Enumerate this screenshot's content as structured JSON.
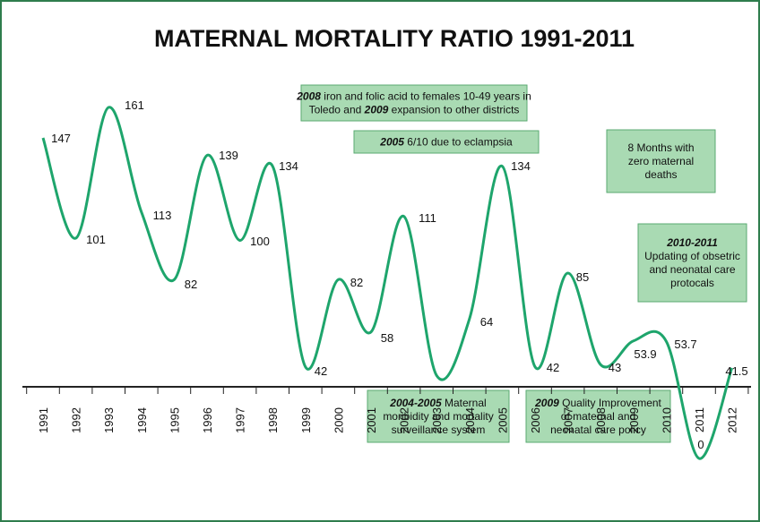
{
  "chart_data": {
    "type": "line",
    "title": "MATERNAL MORTALITY RATIO 1991-2011",
    "categories": [
      "1991",
      "1992",
      "1993",
      "1994",
      "1995",
      "1996",
      "1997",
      "1998",
      "1999",
      "2000",
      "2001",
      "2002",
      "2003",
      "2004",
      "2005",
      "2006",
      "2007",
      "2008",
      "2009",
      "2010",
      "2011",
      "2012"
    ],
    "series": [
      {
        "color": "#1ea56c",
        "values": [
          147,
          101,
          161,
          113,
          82,
          139,
          100,
          134,
          42,
          82,
          58,
          111,
          38,
          64,
          134,
          42,
          85,
          43,
          53.9,
          53.7,
          0,
          41.5
        ],
        "value_labels": [
          "147",
          "101",
          "161",
          "113",
          "82",
          "139",
          "100",
          "134",
          "42",
          "82",
          "58",
          "111",
          null,
          "64",
          "134",
          "42",
          "85",
          "43",
          "53.9",
          "53.7",
          "0",
          "41.5"
        ]
      }
    ],
    "ylim": [
      0,
      170
    ],
    "annotations": [
      {
        "lines": [
          [
            {
              "text": "2008",
              "em": true
            },
            {
              "text": " iron and folic acid to females 10-49 years in"
            }
          ],
          [
            {
              "text": "Toledo and "
            },
            {
              "text": "2009",
              "em": true
            },
            {
              "text": " expansion to other districts"
            }
          ]
        ]
      },
      {
        "lines": [
          [
            {
              "text": "2005",
              "em": true
            },
            {
              "text": " 6/10 due to eclampsia"
            }
          ]
        ]
      },
      {
        "lines": [
          [
            {
              "text": "8 Months with"
            }
          ],
          [
            {
              "text": "zero maternal"
            }
          ],
          [
            {
              "text": "deaths"
            }
          ]
        ]
      },
      {
        "lines": [
          [
            {
              "text": "2010-2011",
              "em": true
            }
          ],
          [
            {
              "text": "Updating of obsetric"
            }
          ],
          [
            {
              "text": "and neonatal care"
            }
          ],
          [
            {
              "text": "protocals"
            }
          ]
        ]
      },
      {
        "lines": [
          [
            {
              "text": "2004-2005",
              "em": true
            },
            {
              "text": " Maternal"
            }
          ],
          [
            {
              "text": "moribidity and mortality"
            }
          ],
          [
            {
              "text": "surveillance system"
            }
          ]
        ]
      },
      {
        "lines": [
          [
            {
              "text": "2009",
              "em": true
            },
            {
              "text": " Quality Improvement"
            }
          ],
          [
            {
              "text": "of maternal and"
            }
          ],
          [
            {
              "text": "neonatal care policy"
            }
          ]
        ]
      }
    ]
  }
}
